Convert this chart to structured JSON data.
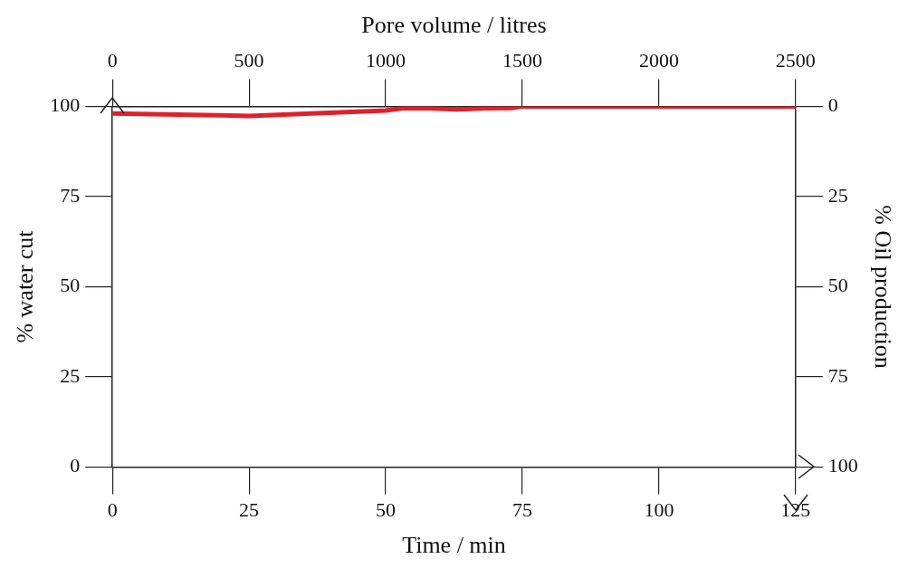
{
  "chart_data": {
    "type": "line",
    "xlabel": "Time / min",
    "ylabel": "% water cut",
    "y2label": "% Oil production",
    "x2label": "Pore volume / litres",
    "series": [
      {
        "color": "#e0202a",
        "x": [
          0,
          25,
          50,
          53,
          57,
          63,
          68,
          73,
          75,
          100,
          125
        ],
        "values": [
          98.1,
          97.4,
          98.9,
          99.5,
          99.6,
          99.2,
          99.5,
          99.6,
          100,
          100,
          100
        ]
      }
    ],
    "xlim": [
      0,
      125
    ],
    "xticks": [
      0,
      25,
      50,
      75,
      100,
      125
    ],
    "x2lim": [
      0,
      2500
    ],
    "x2ticks": [
      0,
      500,
      1000,
      1500,
      2000,
      2500
    ],
    "ylim": [
      0,
      100
    ],
    "yticks": [
      0,
      25,
      50,
      75,
      100
    ],
    "y2lim": [
      100,
      0
    ],
    "y2ticks": [
      0,
      25,
      50,
      75,
      100
    ],
    "grid": false,
    "legend": false,
    "marker": "none",
    "line_style": "solid"
  }
}
